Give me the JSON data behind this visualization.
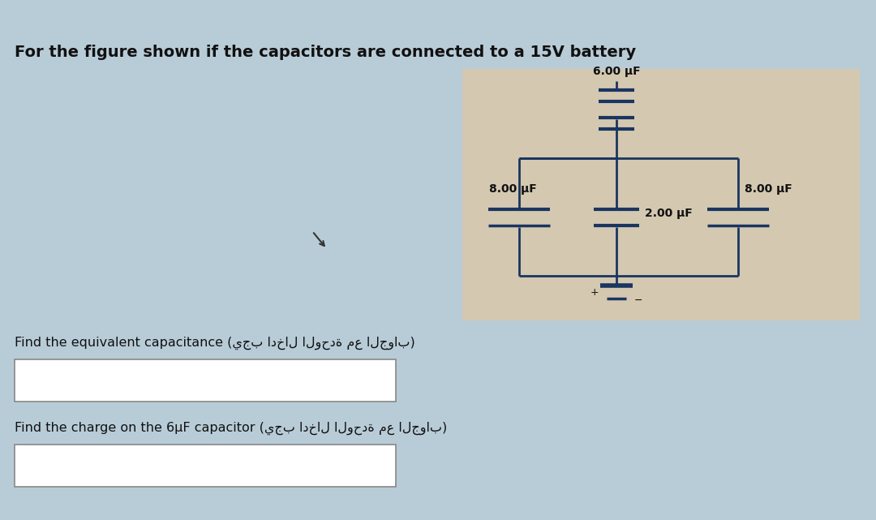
{
  "title": "For the figure shown if the capacitors are connected to a 15V battery",
  "title_fontsize": 14,
  "bg_color": "#b8ccd8",
  "circuit_bg": "#d4c8b0",
  "cap_6": "6.00 μF",
  "cap_2": "2.00 μF",
  "cap_8_left": "8.00 μF",
  "cap_8_right": "8.00 μF",
  "q1_label": "Find the equivalent capacitance (يجب ادخال الوحدة مع الجواب)",
  "q2_label": "Find the charge on the 6μF capacitor (يجب ادخال الوحدة مع الجواب)",
  "line_color": "#1a3560",
  "text_color": "#111111",
  "lw": 2.0
}
